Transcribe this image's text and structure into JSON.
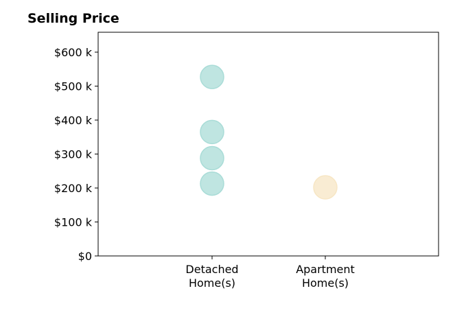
{
  "chart_data": {
    "type": "scatter",
    "title": "Selling Price",
    "xlabel": "",
    "ylabel": "",
    "categories": [
      "Detached\nHome(s)",
      "Apartment\nHome(s)"
    ],
    "ylim": [
      0,
      600000
    ],
    "yticks": [
      0,
      100000,
      200000,
      300000,
      400000,
      500000,
      600000
    ],
    "ytick_labels": [
      "$0",
      "$100 k",
      "$200 k",
      "$300 k",
      "$400 k",
      "$500 k",
      "$600 k"
    ],
    "grid": false,
    "series": [
      {
        "category": "Detached\nHome(s)",
        "color": "#a9dcd7",
        "values": [
          527000,
          365000,
          288000,
          213000
        ]
      },
      {
        "category": "Apartment\nHome(s)",
        "color": "#f7e6c4",
        "values": [
          202000
        ]
      }
    ]
  }
}
